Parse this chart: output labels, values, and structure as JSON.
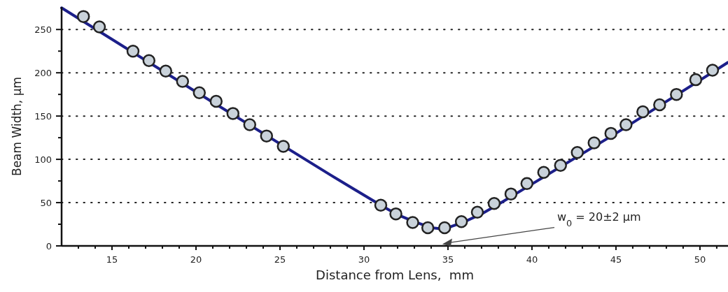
{
  "chart_data": {
    "type": "scatter",
    "xlabel": "Distance from Lens,  mm",
    "ylabel": "Beam Width, µm",
    "xlim": [
      12,
      51.67
    ],
    "ylim": [
      0,
      276
    ],
    "xticks": [
      {
        "value": 13,
        "label": null
      },
      {
        "value": 14,
        "label": null
      },
      15,
      {
        "value": 16,
        "label": null
      },
      {
        "value": 17,
        "label": null
      },
      {
        "value": 18,
        "label": null
      },
      {
        "value": 19,
        "label": null
      },
      20,
      {
        "value": 21,
        "label": null
      },
      {
        "value": 22,
        "label": null
      },
      {
        "value": 23,
        "label": null
      },
      {
        "value": 24,
        "label": null
      },
      25,
      {
        "value": 26,
        "label": null
      },
      {
        "value": 27,
        "label": null
      },
      {
        "value": 28,
        "label": null
      },
      {
        "value": 29,
        "label": null
      },
      30,
      {
        "value": 31,
        "label": null
      },
      {
        "value": 32,
        "label": null
      },
      {
        "value": 33,
        "label": null
      },
      {
        "value": 34,
        "label": null
      },
      35,
      {
        "value": 36,
        "label": null
      },
      {
        "value": 37,
        "label": null
      },
      {
        "value": 38,
        "label": null
      },
      {
        "value": 39,
        "label": null
      },
      40,
      {
        "value": 41,
        "label": null
      },
      {
        "value": 42,
        "label": null
      },
      {
        "value": 43,
        "label": null
      },
      {
        "value": 44,
        "label": null
      },
      45,
      {
        "value": 46,
        "label": null
      },
      {
        "value": 47,
        "label": null
      },
      {
        "value": 48,
        "label": null
      },
      {
        "value": 49,
        "label": null
      },
      50,
      {
        "value": 51,
        "label": null
      }
    ],
    "yticks": [
      0,
      {
        "value": 25,
        "label": null
      },
      50,
      {
        "value": 75,
        "label": null
      },
      100,
      {
        "value": 125,
        "label": null
      },
      150,
      {
        "value": 175,
        "label": null
      },
      200,
      {
        "value": 225,
        "label": null
      },
      250
    ],
    "grid": "y",
    "marker": "circle",
    "series": [
      {
        "type": "line",
        "color": "#1c1f8a",
        "line_style": "solid",
        "marker": "none",
        "x": [
          12,
          20,
          28,
          31,
          32,
          33,
          34,
          34.5,
          35,
          36,
          37,
          38,
          45,
          51.67
        ],
        "values": [
          275,
          178,
          82,
          47,
          36,
          28,
          21,
          20,
          21,
          28,
          37,
          48,
          130,
          212
        ]
      },
      {
        "type": "scatter",
        "color": "#c9d2da",
        "x": [
          13.3,
          14.25,
          16.25,
          17.2,
          18.2,
          19.2,
          20.2,
          21.2,
          22.2,
          23.2,
          24.2,
          25.2,
          31,
          31.9,
          32.9,
          33.8,
          34.8,
          35.8,
          36.75,
          37.75,
          38.75,
          39.7,
          40.7,
          41.7,
          42.7,
          43.7,
          44.7,
          45.6,
          46.6,
          47.6,
          48.6,
          49.75,
          50.75
        ],
        "values": [
          265,
          253,
          225,
          214,
          202,
          190,
          177,
          167,
          153,
          140,
          127,
          115,
          47,
          37,
          27,
          21,
          21,
          28,
          39,
          49,
          60,
          72,
          85,
          93,
          108,
          119,
          130,
          140,
          155,
          163,
          175,
          192,
          203
        ]
      }
    ],
    "annotations": [
      "w$_{0}$ = 20±2 µm"
    ]
  }
}
